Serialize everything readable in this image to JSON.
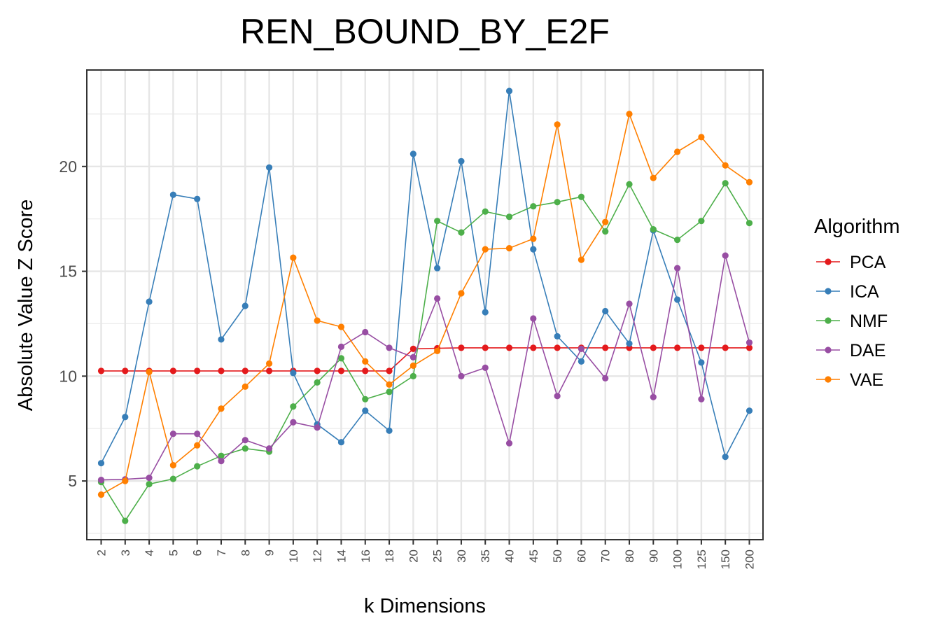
{
  "chart_data": {
    "type": "line",
    "title": "REN_BOUND_BY_E2F",
    "xlabel": "k Dimensions",
    "ylabel": "Absolute Value Z Score",
    "categories": [
      "2",
      "3",
      "4",
      "5",
      "6",
      "7",
      "8",
      "9",
      "10",
      "12",
      "14",
      "16",
      "18",
      "20",
      "25",
      "30",
      "35",
      "40",
      "45",
      "50",
      "60",
      "70",
      "80",
      "90",
      "100",
      "125",
      "150",
      "200"
    ],
    "ylim": [
      2.2,
      24.6
    ],
    "yticks": [
      5,
      10,
      15,
      20
    ],
    "grid": true,
    "legend": {
      "title": "Algorithm",
      "position": "right"
    },
    "series": [
      {
        "name": "PCA",
        "color": "#E41A1C",
        "values": [
          10.25,
          10.25,
          10.25,
          10.25,
          10.25,
          10.25,
          10.25,
          10.25,
          10.25,
          10.25,
          10.25,
          10.25,
          10.25,
          11.3,
          11.33,
          11.35,
          11.35,
          11.35,
          11.35,
          11.35,
          11.35,
          11.35,
          11.35,
          11.35,
          11.35,
          11.35,
          11.35,
          11.35
        ]
      },
      {
        "name": "ICA",
        "color": "#377EB8",
        "values": [
          5.85,
          8.05,
          13.55,
          18.65,
          18.45,
          11.75,
          13.35,
          19.95,
          10.15,
          7.7,
          6.85,
          8.35,
          7.4,
          20.6,
          15.15,
          20.25,
          13.05,
          23.6,
          16.05,
          11.9,
          10.7,
          13.1,
          11.55,
          16.95,
          13.65,
          10.65,
          6.15,
          8.35
        ]
      },
      {
        "name": "NMF",
        "color": "#4DAF4A",
        "values": [
          4.95,
          3.1,
          4.85,
          5.1,
          5.7,
          6.2,
          6.55,
          6.4,
          8.55,
          9.7,
          10.85,
          8.9,
          9.25,
          10.0,
          17.4,
          16.85,
          17.85,
          17.6,
          18.1,
          18.3,
          18.55,
          16.9,
          19.15,
          17.0,
          16.5,
          17.4,
          19.2,
          17.3
        ]
      },
      {
        "name": "DAE",
        "color": "#984EA3",
        "values": [
          5.05,
          5.08,
          5.15,
          7.25,
          7.25,
          5.95,
          6.95,
          6.55,
          7.8,
          7.55,
          11.4,
          12.1,
          11.35,
          10.9,
          13.7,
          10.0,
          10.4,
          6.8,
          12.75,
          9.05,
          11.3,
          9.9,
          13.45,
          9.0,
          15.15,
          8.9,
          15.75,
          11.6
        ]
      },
      {
        "name": "VAE",
        "color": "#FF7F00",
        "values": [
          4.35,
          5.0,
          10.2,
          5.75,
          6.7,
          8.45,
          9.5,
          10.6,
          15.65,
          12.65,
          12.35,
          10.7,
          9.6,
          10.5,
          11.2,
          13.95,
          16.05,
          16.1,
          16.55,
          22.0,
          15.55,
          17.35,
          22.5,
          19.45,
          20.7,
          21.4,
          20.05,
          19.25
        ]
      }
    ]
  }
}
